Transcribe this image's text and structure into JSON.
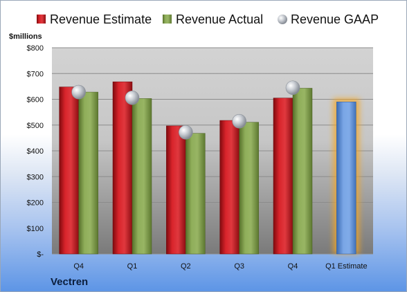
{
  "company": "Vectren",
  "chart_data": {
    "type": "bar",
    "ylabel": "$millions",
    "ylim": [
      0,
      800
    ],
    "y_ticks": [
      {
        "value": 0,
        "label": "$-"
      },
      {
        "value": 100,
        "label": "$100"
      },
      {
        "value": 200,
        "label": "$200"
      },
      {
        "value": 300,
        "label": "$300"
      },
      {
        "value": 400,
        "label": "$400"
      },
      {
        "value": 500,
        "label": "$500"
      },
      {
        "value": 600,
        "label": "$600"
      },
      {
        "value": 700,
        "label": "$700"
      },
      {
        "value": 800,
        "label": "$800"
      }
    ],
    "categories": [
      "Q4",
      "Q1",
      "Q2",
      "Q3",
      "Q4",
      "Q1 Estimate"
    ],
    "legend_position": "top",
    "grid": true,
    "series": [
      {
        "name": "Revenue Estimate",
        "kind": "bar",
        "color": "#c8141c",
        "values": [
          648,
          668,
          497,
          518,
          605,
          null
        ]
      },
      {
        "name": "Revenue Actual",
        "kind": "bar",
        "color": "#7e9c4a",
        "values": [
          628,
          603,
          468,
          511,
          643,
          null
        ]
      },
      {
        "name": "Revenue GAAP",
        "kind": "marker",
        "color": "#b9bec6",
        "values": [
          628,
          606,
          472,
          515,
          645,
          null
        ]
      },
      {
        "name": "Q1 Estimate",
        "kind": "highlight-bar",
        "color": "#5b8fd6",
        "glow": "#f5a623",
        "values": [
          null,
          null,
          null,
          null,
          null,
          590
        ]
      }
    ]
  }
}
